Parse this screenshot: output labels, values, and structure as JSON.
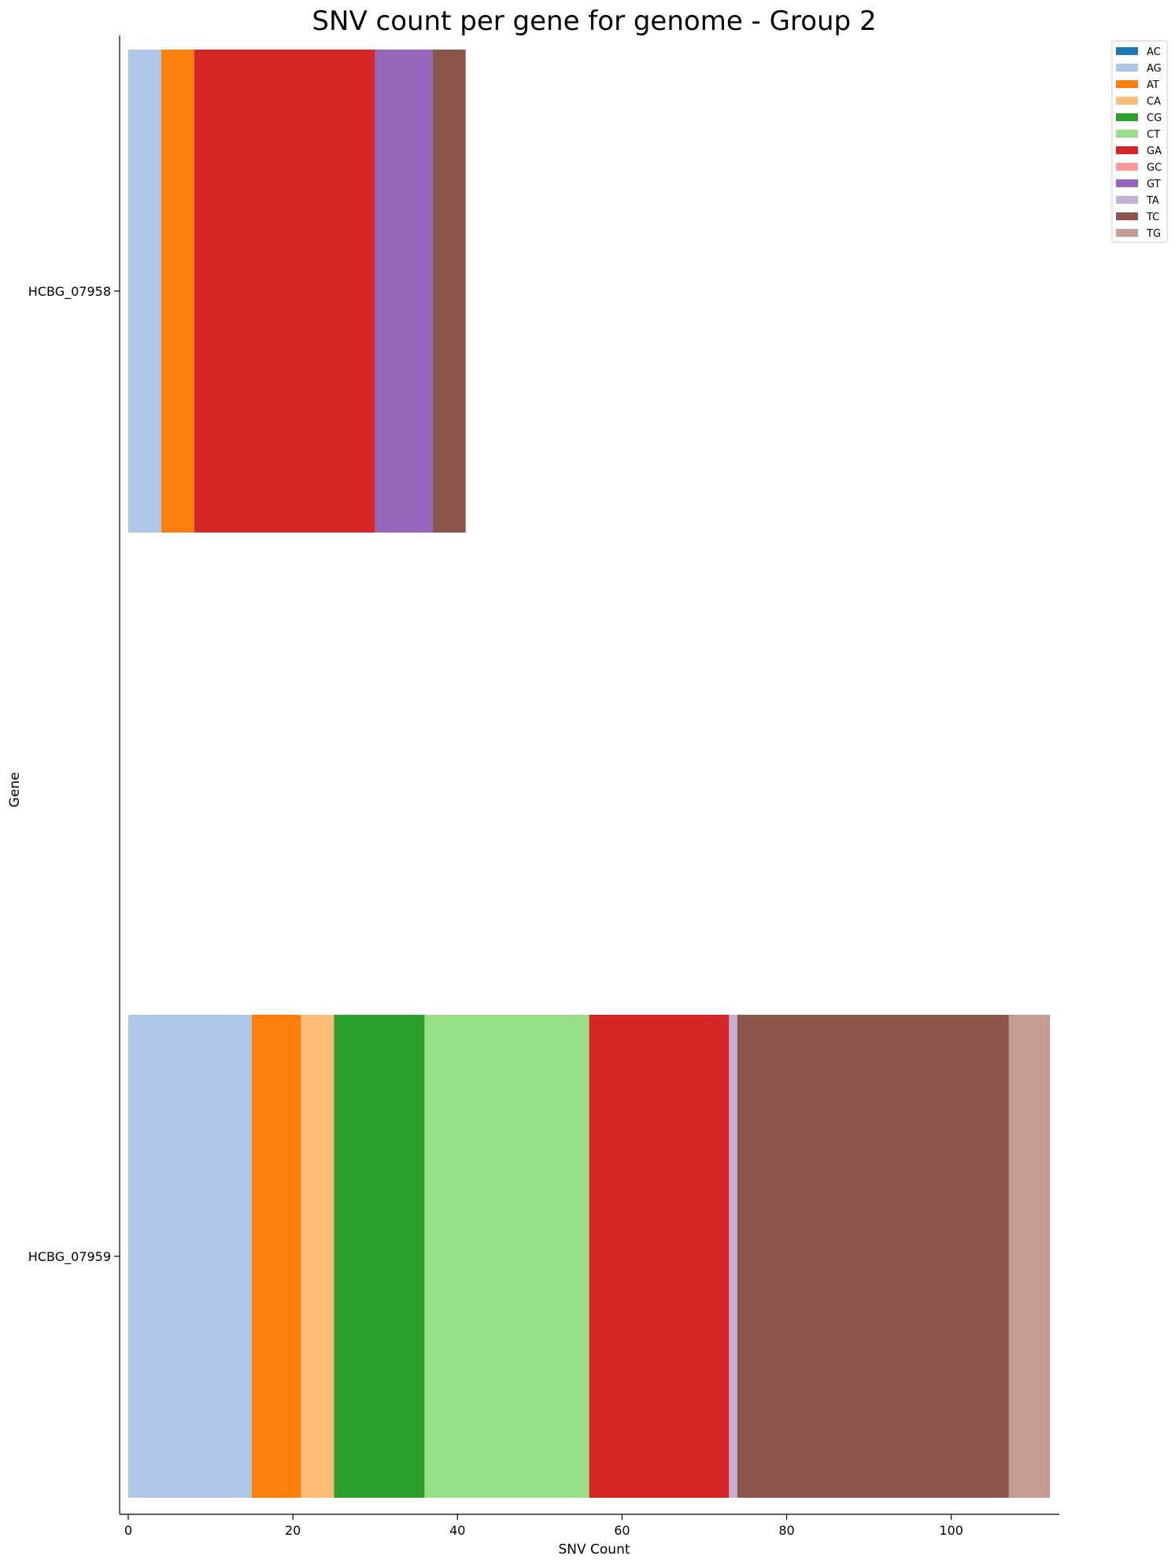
{
  "chart_data": {
    "type": "bar",
    "orientation": "horizontal",
    "stacked": true,
    "title": "SNV count per gene for genome - Group 2",
    "xlabel": "SNV Count",
    "ylabel": "Gene",
    "xlim": [
      0,
      113
    ],
    "xticks": [
      0,
      20,
      40,
      60,
      80,
      100
    ],
    "grid": false,
    "legend_position": "top-right",
    "categories": [
      "HCBG_07958",
      "HCBG_07959"
    ],
    "series": [
      {
        "name": "AC",
        "color": "#1f77b4",
        "values": [
          0,
          0
        ]
      },
      {
        "name": "AG",
        "color": "#aec7e8",
        "values": [
          4,
          15
        ]
      },
      {
        "name": "AT",
        "color": "#ff7f0e",
        "values": [
          4,
          6
        ]
      },
      {
        "name": "CA",
        "color": "#ffbb78",
        "values": [
          0,
          4
        ]
      },
      {
        "name": "CG",
        "color": "#2ca02c",
        "values": [
          0,
          11
        ]
      },
      {
        "name": "CT",
        "color": "#98df8a",
        "values": [
          0,
          20
        ]
      },
      {
        "name": "GA",
        "color": "#d62728",
        "values": [
          22,
          17
        ]
      },
      {
        "name": "GC",
        "color": "#ff9896",
        "values": [
          0,
          0
        ]
      },
      {
        "name": "GT",
        "color": "#9467bd",
        "values": [
          7,
          0
        ]
      },
      {
        "name": "TA",
        "color": "#c5b0d5",
        "values": [
          0,
          1
        ]
      },
      {
        "name": "TC",
        "color": "#8c564b",
        "values": [
          4,
          33
        ]
      },
      {
        "name": "TG",
        "color": "#c49c94",
        "values": [
          0,
          5
        ]
      }
    ]
  }
}
